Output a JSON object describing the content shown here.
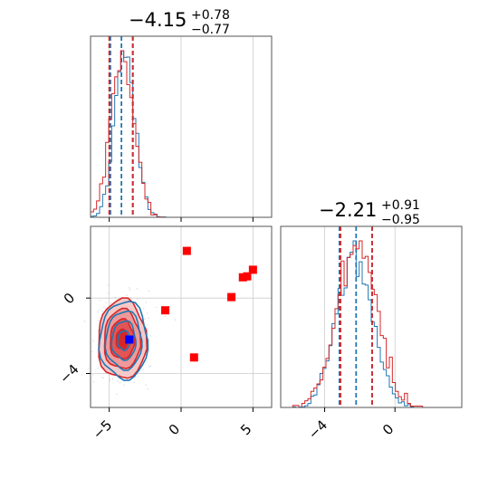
{
  "colors": {
    "blue": "#1f77b4",
    "red": "#d62728",
    "grid": "#cccccc",
    "marker_red": "#ff0000",
    "marker_blue": "#0000ff"
  },
  "chart_data": [
    {
      "type": "histogram",
      "panel": "top-left",
      "title_main": "−4.15",
      "title_sup": "+0.78",
      "title_sub": "−0.77",
      "xlim": [
        -6.3,
        6.3
      ],
      "grid": true,
      "series": [
        {
          "color": "#1f77b4",
          "center": -3.9,
          "width": 0.7,
          "quantiles": [
            -4.92,
            -4.15,
            -3.37
          ]
        },
        {
          "color": "#d62728",
          "center": -4.1,
          "width": 0.8,
          "quantiles": [
            -5.0,
            -3.35
          ]
        }
      ]
    },
    {
      "type": "histogram",
      "panel": "bottom-right",
      "title_main": "−2.21",
      "title_sup": "+0.91",
      "title_sub": "−0.95",
      "xlim": [
        -6.5,
        3.8
      ],
      "xticks": [
        "−4",
        "0"
      ],
      "xtick_values": [
        -4,
        0
      ],
      "grid": true,
      "series": [
        {
          "color": "#1f77b4",
          "center": -2.3,
          "width": 1.0,
          "quantiles": [
            -3.16,
            -2.21,
            -1.3
          ]
        },
        {
          "color": "#d62728",
          "center": -2.2,
          "width": 1.1,
          "quantiles": [
            -3.1,
            -1.3
          ]
        }
      ]
    },
    {
      "type": "scatter",
      "panel": "bottom-left",
      "xlim": [
        -6.3,
        6.3
      ],
      "ylim": [
        -5.8,
        3.8
      ],
      "xticks": [
        "−5",
        "0",
        "5"
      ],
      "xtick_values": [
        -5,
        0,
        5
      ],
      "yticks": [
        "0",
        "−4"
      ],
      "ytick_values": [
        0,
        -4
      ],
      "grid": true,
      "contours": {
        "center": [
          -4.1,
          -2.2
        ],
        "sx": 0.85,
        "sy": 1.05
      },
      "red_points": [
        [
          0.4,
          2.5
        ],
        [
          4.3,
          1.1
        ],
        [
          4.6,
          1.15
        ],
        [
          5.0,
          1.5
        ],
        [
          3.5,
          0.05
        ],
        [
          -1.1,
          -0.65
        ],
        [
          0.9,
          -3.15
        ]
      ],
      "blue_points": [
        [
          -3.6,
          -2.2
        ]
      ]
    }
  ]
}
